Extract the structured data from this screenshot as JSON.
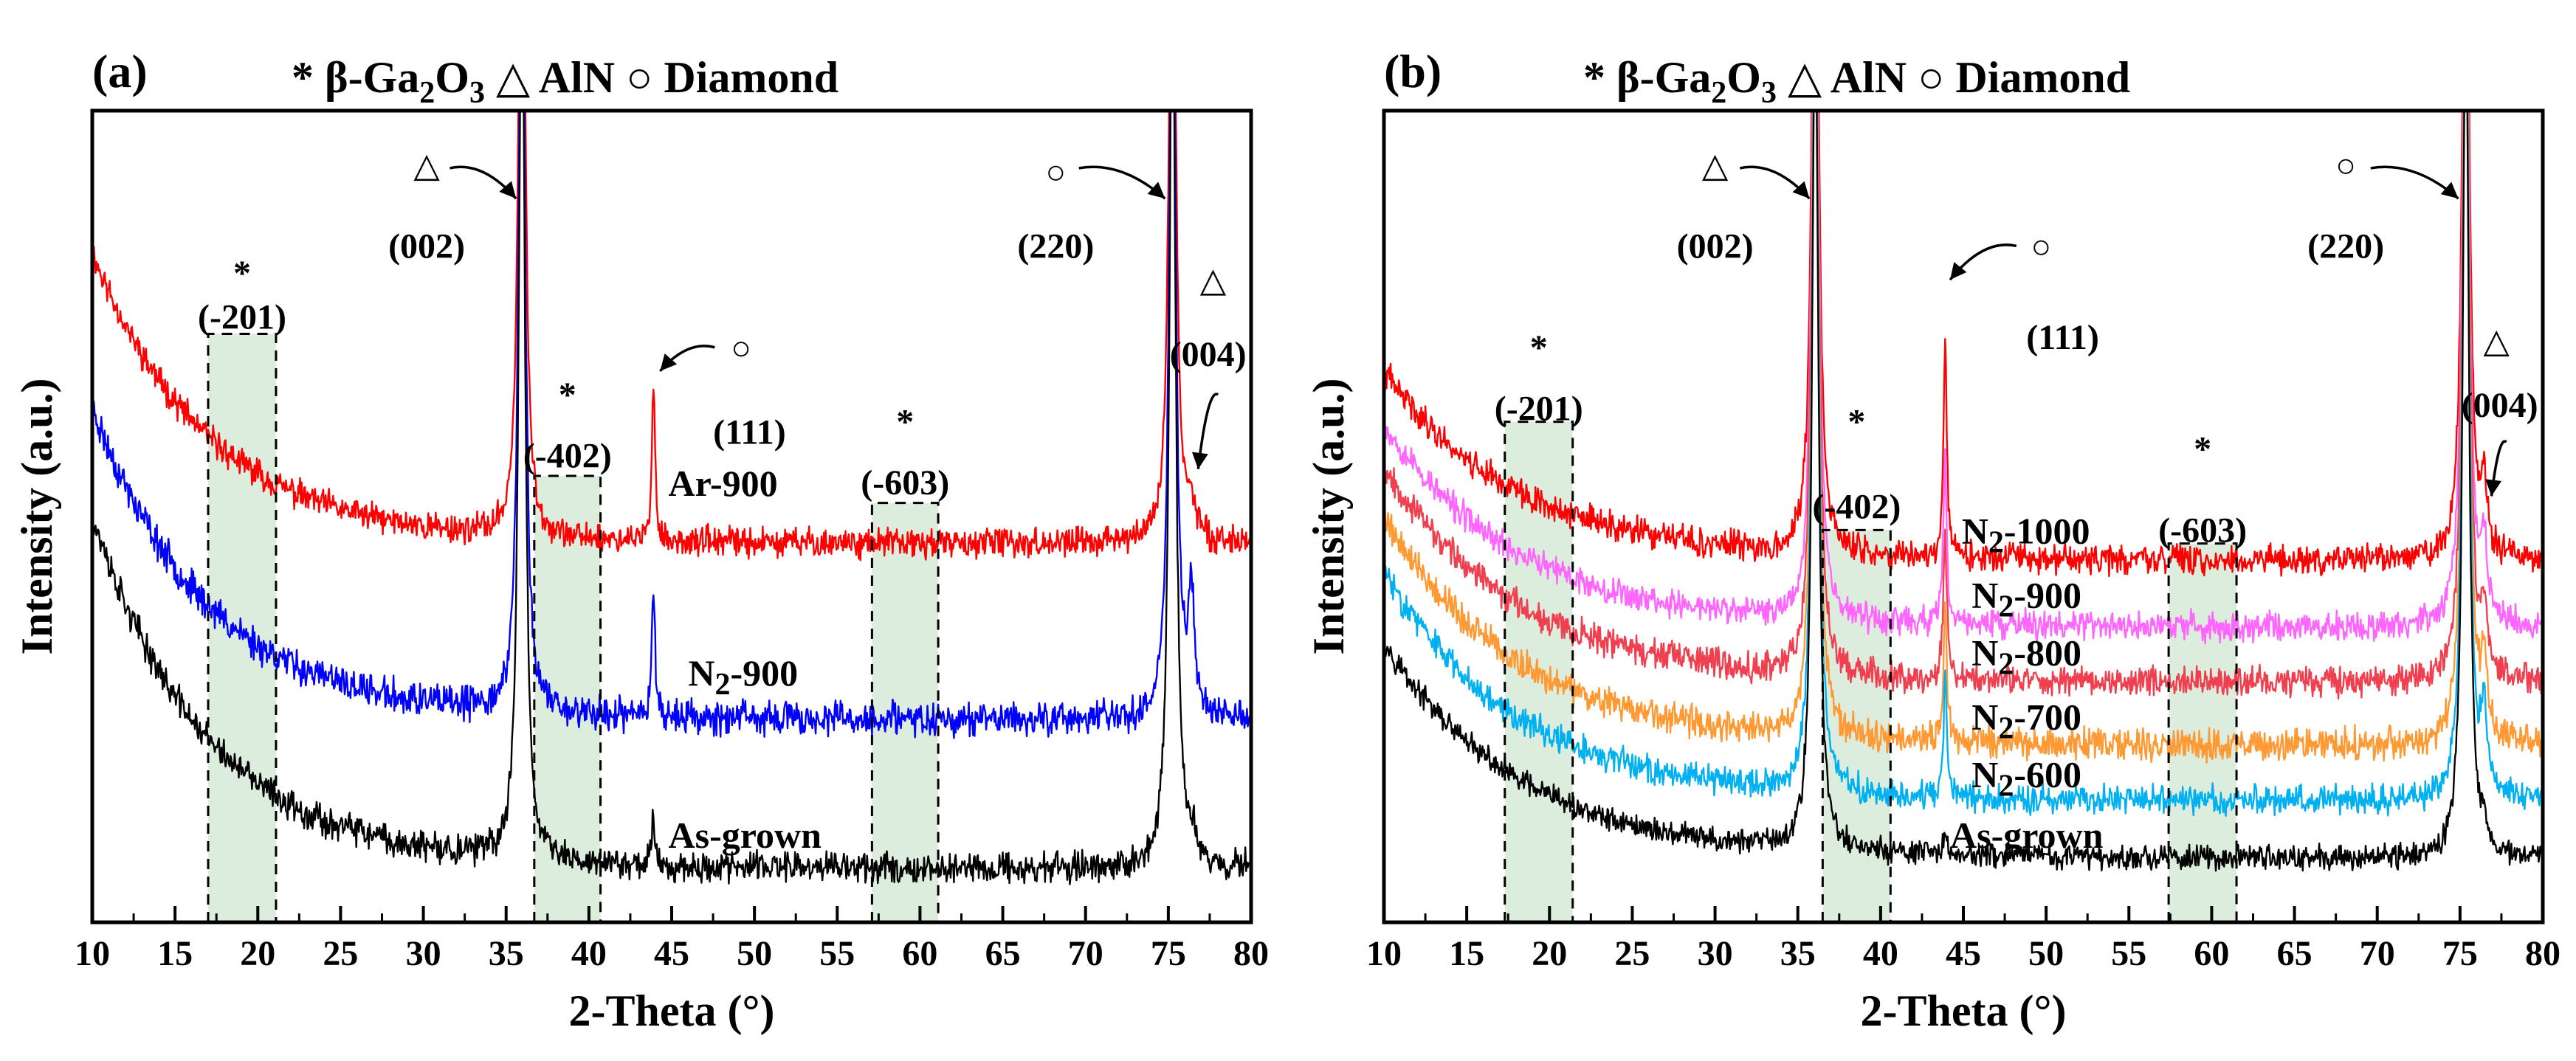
{
  "colors": {
    "red": "#ff0000",
    "blue": "#0000ff",
    "black": "#000000",
    "magenta": "#ff66ff",
    "salmon": "#f04050",
    "orange": "#ff9933",
    "cyan": "#00b0f0",
    "highlight": "#cfe5cf"
  },
  "chart_data": [
    {
      "panel_label": "(a)",
      "type": "line",
      "legend": {
        "items": [
          {
            "marker": "*",
            "label": "β-Ga",
            "sub1": "2",
            "mid": "O",
            "sub2": "3"
          },
          {
            "marker": "△",
            "label": "AlN"
          },
          {
            "marker": "○",
            "label": "Diamond"
          }
        ]
      },
      "xlabel": "2-Theta (°)",
      "ylabel": "Intensity (a.u.)",
      "xlim": [
        10,
        80
      ],
      "xticks": [
        10,
        15,
        20,
        25,
        30,
        35,
        40,
        45,
        50,
        55,
        60,
        65,
        70,
        75,
        80
      ],
      "series": [
        {
          "name": "Ar-900",
          "color": "red",
          "baseline": 0.56,
          "decay_amp": 0.43,
          "decay_len": 7,
          "noise": 0.012,
          "seed": 11,
          "label_parts": [
            "Ar-900"
          ],
          "label_x": 44.8,
          "label_y": 0.65
        },
        {
          "name": "N2-900",
          "color": "blue",
          "baseline": 0.3,
          "decay_amp": 0.46,
          "decay_len": 7,
          "noise": 0.014,
          "seed": 23,
          "label_parts": [
            "N",
            "2",
            "-900"
          ],
          "label_x": 46,
          "label_y": 0.37
        },
        {
          "name": "As-grown",
          "color": "black",
          "baseline": 0.08,
          "decay_amp": 0.52,
          "decay_len": 7,
          "noise": 0.013,
          "seed": 37,
          "label_parts": [
            "As-grown"
          ],
          "label_x": 44.8,
          "label_y": 0.13
        }
      ],
      "peaks": [
        {
          "pos": 35.95,
          "width": 0.22,
          "heights": [
            1.2,
            1.3,
            1.4
          ]
        },
        {
          "pos": 43.9,
          "width": 0.12,
          "heights": [
            0.22,
            0.2,
            0.07
          ]
        },
        {
          "pos": 75.25,
          "width": 0.22,
          "heights": [
            1.2,
            1.3,
            1.4
          ]
        },
        {
          "pos": 76.4,
          "width": 0.22,
          "heights": [
            0.05,
            0.18,
            0.04
          ]
        }
      ],
      "regions": [
        {
          "x1": 17.0,
          "x2": 21.1,
          "y_top": 0.87,
          "label": "(-201)",
          "star_y": 0.96,
          "label_y": 0.895
        },
        {
          "x1": 36.7,
          "x2": 40.7,
          "y_top": 0.66,
          "label": "(-402)",
          "star_y": 0.78,
          "label_y": 0.69
        },
        {
          "x1": 57.1,
          "x2": 61.1,
          "y_top": 0.62,
          "label": "(-603)",
          "star_y": 0.74,
          "label_y": 0.65
        }
      ],
      "annotations": [
        {
          "marker": "△",
          "mx": 30.2,
          "my": 1.12,
          "label": "(002)",
          "lx": 30.2,
          "ly": 1.0,
          "arrow": [
            [
              31.6,
              1.115
            ],
            [
              35.6,
              1.07
            ]
          ]
        },
        {
          "marker": "○",
          "mx": 49.2,
          "my": 0.85,
          "label": "(111)",
          "lx": 49.7,
          "ly": 0.725,
          "arrow": [
            [
              47.6,
              0.85
            ],
            [
              44.3,
              0.815
            ]
          ]
        },
        {
          "marker": "○",
          "mx": 68.2,
          "my": 1.11,
          "label": "(220)",
          "lx": 68.2,
          "ly": 1.0,
          "arrow": [
            [
              69.6,
              1.115
            ],
            [
              74.8,
              1.07
            ]
          ]
        },
        {
          "marker": "△",
          "mx": 77.7,
          "my": 0.95,
          "label": "(004)",
          "lx": 77.4,
          "ly": 0.84,
          "arrow": [
            [
              78.0,
              0.78
            ],
            [
              76.8,
              0.67
            ]
          ]
        }
      ]
    },
    {
      "panel_label": "(b)",
      "type": "line",
      "legend": {
        "items": [
          {
            "marker": "*",
            "label": "β-Ga",
            "sub1": "2",
            "mid": "O",
            "sub2": "3"
          },
          {
            "marker": "△",
            "label": "AlN"
          },
          {
            "marker": "○",
            "label": "Diamond"
          }
        ]
      },
      "xlabel": "2-Theta (°)",
      "ylabel": "Intensity (a.u.)",
      "xlim": [
        10,
        80
      ],
      "xticks": [
        10,
        15,
        20,
        25,
        30,
        35,
        40,
        45,
        50,
        55,
        60,
        65,
        70,
        75,
        80
      ],
      "series": [
        {
          "name": "N2-1000",
          "color": "red",
          "baseline": 0.535,
          "decay_amp": 0.28,
          "decay_len": 8,
          "noise": 0.012,
          "seed": 41,
          "label_parts": [
            "N",
            "2",
            "-1000"
          ],
          "label_x": 44.9,
          "label_y": 0.58
        },
        {
          "name": "N2-900",
          "color": "magenta",
          "baseline": 0.437,
          "decay_amp": 0.3,
          "decay_len": 8,
          "noise": 0.012,
          "seed": 53,
          "label_parts": [
            "N",
            "2",
            "-900"
          ],
          "label_x": 45.5,
          "label_y": 0.485
        },
        {
          "name": "N2-800",
          "color": "salmon",
          "baseline": 0.355,
          "decay_amp": 0.32,
          "decay_len": 8,
          "noise": 0.012,
          "seed": 67,
          "label_parts": [
            "N",
            "2",
            "-800"
          ],
          "label_x": 45.5,
          "label_y": 0.4
        },
        {
          "name": "N2-700",
          "color": "orange",
          "baseline": 0.262,
          "decay_amp": 0.34,
          "decay_len": 8,
          "noise": 0.013,
          "seed": 79,
          "label_parts": [
            "N",
            "2",
            "-700"
          ],
          "label_x": 45.5,
          "label_y": 0.305
        },
        {
          "name": "N2-600",
          "color": "cyan",
          "baseline": 0.18,
          "decay_amp": 0.34,
          "decay_len": 8,
          "noise": 0.012,
          "seed": 83,
          "label_parts": [
            "N",
            "2",
            "-600"
          ],
          "label_x": 45.5,
          "label_y": 0.22
        },
        {
          "name": "As-grown",
          "color": "black",
          "baseline": 0.095,
          "decay_amp": 0.32,
          "decay_len": 8,
          "noise": 0.01,
          "seed": 97,
          "label_parts": [
            "As-grown"
          ],
          "label_x": 44.2,
          "label_y": 0.13
        }
      ],
      "peaks": [
        {
          "pos": 36.05,
          "width": 0.22,
          "heights": [
            1.3,
            1.3,
            1.3,
            1.3,
            1.3,
            1.3
          ]
        },
        {
          "pos": 43.9,
          "width": 0.12,
          "heights": [
            0.32,
            0.25,
            0.22,
            0.2,
            0.18,
            0.03
          ]
        },
        {
          "pos": 75.35,
          "width": 0.22,
          "heights": [
            1.3,
            1.3,
            1.3,
            1.3,
            1.3,
            1.3
          ]
        },
        {
          "pos": 76.45,
          "width": 0.22,
          "heights": [
            0.09,
            0.12,
            0.1,
            0.12,
            0.12,
            0.03
          ]
        }
      ],
      "regions": [
        {
          "x1": 17.3,
          "x2": 21.4,
          "y_top": 0.74,
          "label": "(-201)",
          "star_y": 0.85,
          "label_y": 0.76
        },
        {
          "x1": 36.5,
          "x2": 40.6,
          "y_top": 0.58,
          "label": "(-402)",
          "star_y": 0.74,
          "label_y": 0.615
        },
        {
          "x1": 57.4,
          "x2": 61.5,
          "y_top": 0.56,
          "label": "(-603)",
          "star_y": 0.7,
          "label_y": 0.58
        }
      ],
      "annotations": [
        {
          "marker": "△",
          "mx": 30.0,
          "my": 1.12,
          "label": "(002)",
          "lx": 30.0,
          "ly": 1.0,
          "arrow": [
            [
              31.5,
              1.115
            ],
            [
              35.7,
              1.07
            ]
          ]
        },
        {
          "marker": "○",
          "mx": 49.7,
          "my": 1.0,
          "label": "(111)",
          "lx": 51.0,
          "ly": 0.865,
          "arrow": [
            [
              48.2,
              1.0
            ],
            [
              44.2,
              0.95
            ]
          ]
        },
        {
          "marker": "○",
          "mx": 68.1,
          "my": 1.12,
          "label": "(220)",
          "lx": 68.1,
          "ly": 1.0,
          "arrow": [
            [
              69.6,
              1.115
            ],
            [
              74.9,
              1.07
            ]
          ]
        },
        {
          "marker": "△",
          "mx": 77.2,
          "my": 0.86,
          "label": "(004)",
          "lx": 77.4,
          "ly": 0.765,
          "arrow": [
            [
              77.8,
              0.71
            ],
            [
              76.9,
              0.63
            ]
          ]
        }
      ]
    }
  ]
}
